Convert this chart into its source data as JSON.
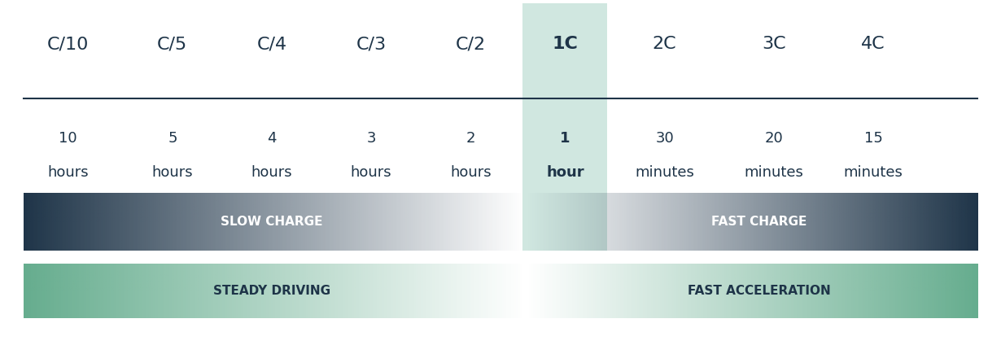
{
  "c_rates": [
    "C/10",
    "C/5",
    "C/4",
    "C/3",
    "C/2",
    "1C",
    "2C",
    "3C",
    "4C"
  ],
  "times_line1": [
    "10",
    "5",
    "4",
    "3",
    "2",
    "1",
    "30",
    "20",
    "15"
  ],
  "times_line2": [
    "hours",
    "hours",
    "hours",
    "hours",
    "hours",
    "hour",
    "minutes",
    "minutes",
    "minutes"
  ],
  "highlight_index": 5,
  "highlight_color": "#b2d8cc",
  "dark_navy": "#1e3448",
  "text_color": "#1e3448",
  "bar_left_label": "SLOW CHARGE",
  "bar_right_label": "FAST CHARGE",
  "bar2_left_label": "STEADY DRIVING",
  "bar2_right_label": "FAST ACCELERATION",
  "bg_color": "#ffffff",
  "line_color": "#1e3448",
  "positions": [
    0.065,
    0.17,
    0.27,
    0.37,
    0.47,
    0.565,
    0.665,
    0.775,
    0.875
  ],
  "navy_hex": "#1e3448",
  "green_hex": "#4a9e7a"
}
